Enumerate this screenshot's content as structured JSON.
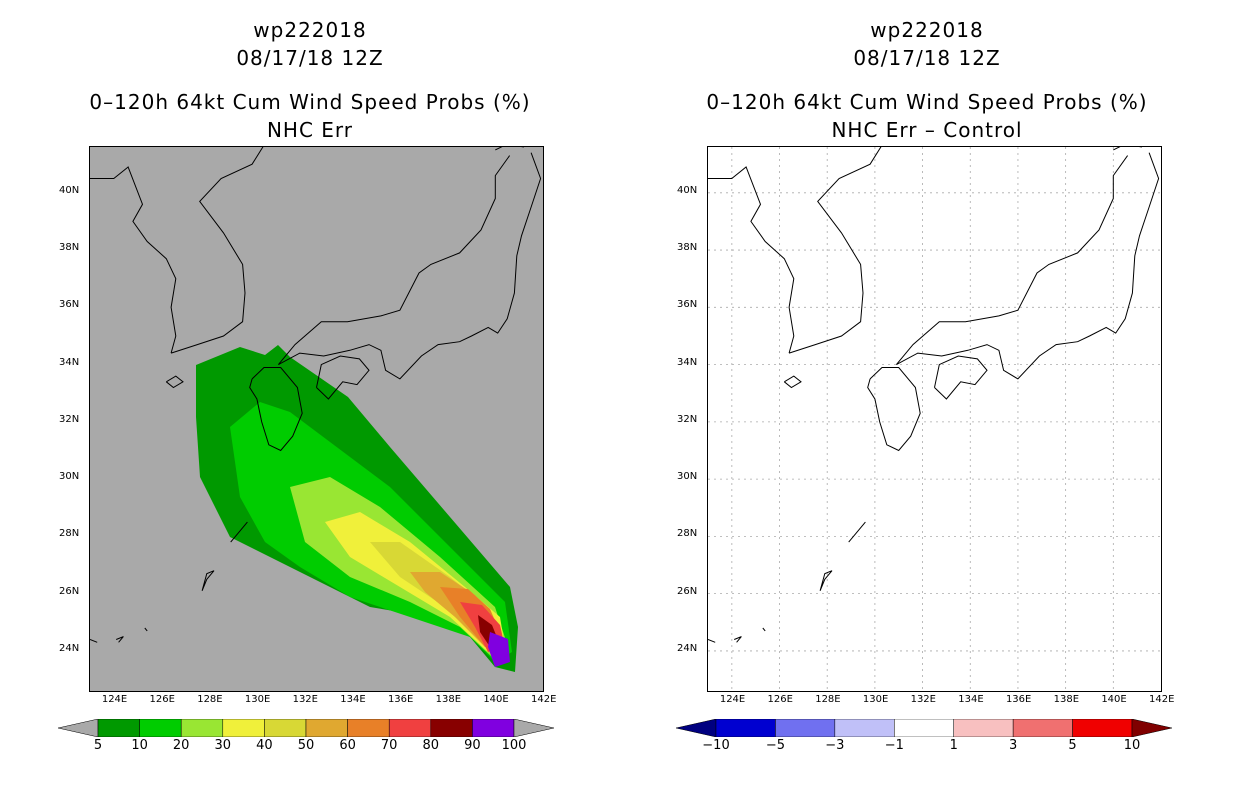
{
  "left": {
    "storm_id": "wp222018",
    "datetime": "08/17/18 12Z",
    "title": "0–120h 64kt Cum Wind Speed Probs (%)",
    "subtitle": "NHC Err",
    "background": "#a9a9a9",
    "colorbar_labels": [
      "5",
      "10",
      "20",
      "30",
      "40",
      "50",
      "60",
      "70",
      "80",
      "90",
      "100"
    ],
    "colorbar_colors": [
      "#009900",
      "#00cc00",
      "#99e633",
      "#f0f03a",
      "#d8d835",
      "#e0a830",
      "#e88028",
      "#f04040",
      "#880000",
      "#8000e0"
    ]
  },
  "right": {
    "storm_id": "wp222018",
    "datetime": "08/17/18 12Z",
    "title": "0–120h 64kt Cum Wind Speed Probs (%)",
    "subtitle": "NHC Err – Control",
    "background": "#ffffff",
    "colorbar_labels": [
      "−10",
      "−5",
      "−3",
      "−1",
      "1",
      "3",
      "5",
      "10"
    ],
    "colorbar_colors": [
      "#0000d0",
      "#7070f0",
      "#c0c0f8",
      "#ffffff",
      "#f8c0c0",
      "#f07070",
      "#f00000"
    ]
  },
  "axes": {
    "lon_ticks": [
      "124E",
      "126E",
      "128E",
      "130E",
      "132E",
      "134E",
      "136E",
      "138E",
      "140E",
      "142E"
    ],
    "lat_ticks": [
      "40N",
      "38N",
      "36N",
      "34N",
      "32N",
      "30N",
      "28N",
      "26N",
      "24N"
    ]
  }
}
